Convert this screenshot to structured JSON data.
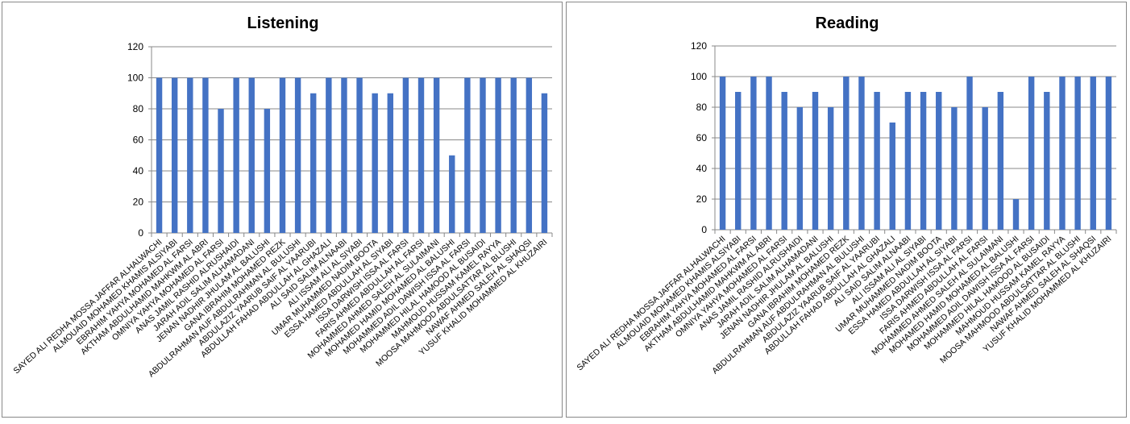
{
  "chart_data": [
    {
      "type": "bar",
      "title": "Listening",
      "xlabel": "",
      "ylabel": "",
      "ylim": [
        0,
        120
      ],
      "yticks": [
        0,
        20,
        40,
        60,
        80,
        100,
        120
      ],
      "grid": true,
      "color": "#4472C4",
      "categories": [
        "SAYED ALI REDHA MOSSA JAFFAR ALHALWACHI",
        "ALMOUAID MOHAMED  KHAMIS ALSIYABI",
        "EBRAHIM YAHYA  MOHAMED AL FARSI",
        "AKTHAM ABDULHAMID MAHKWM AL ABRI",
        "OMNIYA YAHYA  MOHAMED  AL FARSI",
        "ANAS JAMIL  RASHID ALRUSHAIDI",
        "JARAH ADIL SALIM ALHAMADANI",
        "JENAN NADHIR JHULAM AL BALUSHI",
        "GANA IBRAHIM  MOHAMED REZK",
        "ABDULRAHMAN AUF ABDULRAHMAN AL BULUSHI",
        "ABDULAZIZ YAARUB SAIF AL YAARUBI",
        "ABDULLAH FAHAD ABDULLAH AL GHAZALI",
        "ALI SAID SALIM ALNAABI",
        "ALI ISSAM ALI AL SIYABI",
        "UMAR MUHAMMED  NADIM  BOOTA",
        "ESSA HAMED  ABDULLAH AL SIYABI",
        "ISSA DARWISH ISSA AL FARSI",
        "FARIS AHMED ABDULLAH AL FARSI",
        "MOHAMMED AHMED SALEH AL SULAIMANI",
        "MOHAMED HAMID MOHAMED  AL BALUSHI",
        "MOHAMMED ADIL DAWISH ISSA  AL FARSI",
        "MOHAMMED HILAL HAMOOD  AL BUSAIDI",
        "MAHMOUD HUSSAM  KAMEL RAYYA",
        "MOOSA MAHMOOD  ABDULSATTAR AL BLUSHI",
        "NAWAF AHMED SALEH AL SHAQSI",
        "YUSUF KHALID MOHAMMED  AL KHUZAIRI"
      ],
      "values": [
        100,
        100,
        100,
        100,
        80,
        100,
        100,
        80,
        100,
        100,
        90,
        100,
        100,
        100,
        90,
        90,
        100,
        100,
        100,
        50,
        100,
        100,
        100,
        100,
        100,
        90
      ]
    },
    {
      "type": "bar",
      "title": "Reading",
      "xlabel": "",
      "ylabel": "",
      "ylim": [
        0,
        120
      ],
      "yticks": [
        0,
        20,
        40,
        60,
        80,
        100,
        120
      ],
      "grid": true,
      "color": "#4472C4",
      "categories": [
        "SAYED ALI REDHA MOSSA JAFFAR ALHALWACHI",
        "ALMOUAID MOHAMED  KHAMIS ALSIYABI",
        "EBRAHIM YAHYA  MOHAMED AL FARSI",
        "AKTHAM ABDULHAMID MAHKWM AL ABRI",
        "OMNIYA YAHYA  MOHAMED  AL FARSI",
        "ANAS JAMIL  RASHID ALRUSHAIDI",
        "JARAH ADIL SALIM ALHAMADANI",
        "JENAN NADHIR JHULAM AL BALUSHI",
        "GANA IBRAHIM  MOHAMED REZK",
        "ABDULRAHMAN AUF ABDULRAHMAN AL BULUSHI",
        "ABDULAZIZ YAARUB SAIF AL YAARUBI",
        "ABDULLAH FAHAD ABDULLAH AL GHAZALI",
        "ALI SAID SALIM ALNAABI",
        "ALI ISSAM ALI AL SIYABI",
        "UMAR MUHAMMED  NADIM  BOOTA",
        "ESSA HAMED  ABDULLAH AL SIYABI",
        "ISSA DARWISH ISSA AL FARSI",
        "FARIS AHMED ABDULLAH AL FARSI",
        "MOHAMMED AHMED SALEH AL SULAIMANI",
        "MOHAMED HAMID MOHAMED  AL BALUSHI",
        "MOHAMMED ADIL DAWISH ISSA  AL FARSI",
        "MOHAMMED HILAL HAMOOD  AL BUSAIDI",
        "MAHMOUD HUSSAM  KAMEL RAYYA",
        "MOOSA MAHMOOD  ABDULSATTAR AL BLUSHI",
        "NAWAF AHMED SALEH AL SHAQSI",
        "YUSUF KHALID MOHAMMED  AL KHUZAIRI"
      ],
      "values": [
        100,
        90,
        100,
        100,
        90,
        80,
        90,
        80,
        100,
        100,
        90,
        70,
        90,
        90,
        90,
        80,
        100,
        80,
        90,
        20,
        100,
        90,
        100,
        100,
        100,
        100
      ]
    }
  ]
}
